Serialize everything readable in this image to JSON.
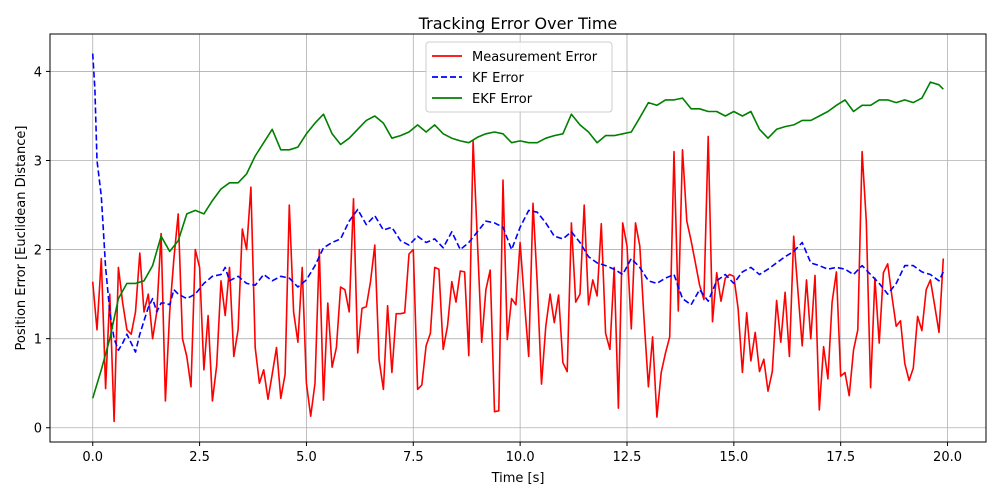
{
  "chart_data": {
    "type": "line",
    "title": "Tracking Error Over Time",
    "xlabel": "Time [s]",
    "ylabel": "Position Error [Euclidean Distance]",
    "xlim": [
      -1.0,
      20.9
    ],
    "ylim": [
      -0.16,
      4.42
    ],
    "grid": true,
    "legend_position": "top-center",
    "x_ticks": [
      0,
      2.5,
      5,
      7.5,
      10,
      12.5,
      15,
      17.5,
      20
    ],
    "x_tick_labels": [
      "0.0",
      "2.5",
      "5.0",
      "7.5",
      "10.0",
      "12.5",
      "15.0",
      "17.5",
      "20.0"
    ],
    "y_ticks": [
      0,
      1,
      2,
      3,
      4
    ],
    "y_tick_labels": [
      "0",
      "1",
      "2",
      "3",
      "4"
    ],
    "series": [
      {
        "name": "Measurement Error",
        "color": "#ff0000",
        "dash": "solid",
        "x": [
          0.0,
          0.1,
          0.2,
          0.3,
          0.4,
          0.5,
          0.6,
          0.7,
          0.8,
          0.9,
          1.0,
          1.1,
          1.2,
          1.3,
          1.4,
          1.5,
          1.6,
          1.7,
          1.8,
          1.9,
          2.0,
          2.1,
          2.2,
          2.3,
          2.4,
          2.5,
          2.6,
          2.7,
          2.8,
          2.9,
          3.0,
          3.1,
          3.2,
          3.3,
          3.4,
          3.5,
          3.6,
          3.7,
          3.8,
          3.9,
          4.0,
          4.1,
          4.2,
          4.3,
          4.4,
          4.5,
          4.6,
          4.7,
          4.8,
          4.9,
          5.0,
          5.1,
          5.2,
          5.3,
          5.4,
          5.5,
          5.6,
          5.7,
          5.8,
          5.9,
          6.0,
          6.1,
          6.2,
          6.3,
          6.4,
          6.5,
          6.6,
          6.7,
          6.8,
          6.9,
          7.0,
          7.1,
          7.2,
          7.3,
          7.4,
          7.5,
          7.6,
          7.7,
          7.8,
          7.9,
          8.0,
          8.1,
          8.2,
          8.3,
          8.4,
          8.5,
          8.6,
          8.7,
          8.8,
          8.9,
          9.0,
          9.1,
          9.2,
          9.3,
          9.4,
          9.5,
          9.6,
          9.7,
          9.8,
          9.9,
          10.0,
          10.1,
          10.2,
          10.3,
          10.4,
          10.5,
          10.6,
          10.7,
          10.8,
          10.9,
          11.0,
          11.1,
          11.2,
          11.3,
          11.4,
          11.5,
          11.6,
          11.7,
          11.8,
          11.9,
          12.0,
          12.1,
          12.2,
          12.3,
          12.4,
          12.5,
          12.6,
          12.7,
          12.8,
          12.9,
          13.0,
          13.1,
          13.2,
          13.3,
          13.4,
          13.5,
          13.6,
          13.7,
          13.8,
          13.9,
          14.0,
          14.1,
          14.2,
          14.3,
          14.4,
          14.5,
          14.6,
          14.7,
          14.8,
          14.9,
          15.0,
          15.1,
          15.2,
          15.3,
          15.4,
          15.5,
          15.6,
          15.7,
          15.8,
          15.9,
          16.0,
          16.1,
          16.2,
          16.3,
          16.4,
          16.5,
          16.6,
          16.7,
          16.8,
          16.9,
          17.0,
          17.1,
          17.2,
          17.3,
          17.4,
          17.5,
          17.6,
          17.7,
          17.8,
          17.9,
          18.0,
          18.1,
          18.2,
          18.3,
          18.4,
          18.5,
          18.6,
          18.7,
          18.8,
          18.9,
          19.0,
          19.1,
          19.2,
          19.3,
          19.4,
          19.5,
          19.6,
          19.7,
          19.8,
          19.9
        ],
        "y": [
          1.64,
          1.1,
          1.9,
          0.44,
          1.5,
          0.07,
          1.8,
          1.4,
          1.1,
          1.05,
          1.3,
          1.96,
          1.3,
          1.5,
          1.0,
          1.3,
          2.18,
          0.3,
          1.3,
          1.9,
          2.4,
          1.0,
          0.8,
          0.46,
          2.0,
          1.8,
          0.65,
          1.26,
          0.3,
          0.7,
          1.65,
          1.26,
          1.8,
          0.8,
          1.1,
          2.23,
          2.0,
          2.7,
          0.9,
          0.5,
          0.65,
          0.32,
          0.6,
          0.9,
          0.33,
          0.6,
          2.5,
          1.3,
          0.96,
          1.8,
          0.5,
          0.13,
          0.5,
          2.0,
          0.31,
          1.4,
          0.68,
          0.9,
          1.58,
          1.55,
          1.3,
          2.57,
          0.84,
          1.34,
          1.36,
          1.64,
          2.05,
          0.76,
          0.43,
          1.37,
          0.62,
          1.28,
          1.28,
          1.29,
          1.95,
          2.0,
          0.43,
          0.48,
          0.92,
          1.06,
          1.8,
          1.78,
          0.88,
          1.14,
          1.64,
          1.41,
          1.76,
          1.75,
          0.81,
          3.22,
          2.1,
          0.96,
          1.55,
          1.77,
          0.18,
          0.19,
          2.78,
          0.99,
          1.45,
          1.38,
          2.08,
          1.42,
          0.8,
          2.52,
          1.63,
          0.49,
          1.14,
          1.5,
          1.18,
          1.49,
          0.73,
          0.63,
          2.3,
          1.41,
          1.5,
          2.5,
          1.38,
          1.66,
          1.48,
          2.29,
          1.06,
          0.88,
          1.8,
          0.22,
          2.3,
          2.04,
          1.11,
          2.3,
          2.04,
          1.21,
          0.46,
          1.02,
          0.12,
          0.62,
          0.84,
          1.02,
          3.1,
          1.31,
          3.12,
          2.32,
          2.1,
          1.85,
          1.6,
          1.44,
          3.27,
          1.19,
          1.74,
          1.42,
          1.68,
          1.72,
          1.7,
          1.34,
          0.62,
          1.29,
          0.75,
          1.07,
          0.63,
          0.77,
          0.41,
          0.63,
          1.43,
          0.96,
          1.52,
          0.8,
          2.15,
          1.54,
          0.92,
          1.66,
          1.0,
          1.71,
          0.2,
          0.91,
          0.55,
          1.41,
          1.75,
          0.58,
          0.62,
          0.36,
          0.87,
          1.1,
          3.1,
          2.32,
          0.45,
          1.68,
          0.95,
          1.74,
          1.84,
          1.47,
          1.14,
          1.2,
          0.72,
          0.53,
          0.67,
          1.25,
          1.09,
          1.55,
          1.66,
          1.37,
          1.07,
          1.9
        ]
      },
      {
        "name": "KF Error",
        "color": "#0000ff",
        "dash": "dashed",
        "x": [
          0.0,
          0.05,
          0.1,
          0.2,
          0.3,
          0.4,
          0.5,
          0.6,
          0.7,
          0.8,
          0.9,
          1.0,
          1.1,
          1.2,
          1.3,
          1.4,
          1.5,
          1.6,
          1.7,
          1.8,
          1.9,
          2.0,
          2.2,
          2.4,
          2.6,
          2.8,
          3.0,
          3.1,
          3.2,
          3.4,
          3.6,
          3.8,
          4.0,
          4.2,
          4.4,
          4.6,
          4.8,
          5.0,
          5.2,
          5.4,
          5.6,
          5.8,
          6.0,
          6.2,
          6.4,
          6.6,
          6.8,
          7.0,
          7.2,
          7.4,
          7.6,
          7.8,
          8.0,
          8.2,
          8.4,
          8.6,
          8.8,
          9.0,
          9.2,
          9.4,
          9.6,
          9.8,
          10.0,
          10.2,
          10.4,
          10.6,
          10.8,
          11.0,
          11.2,
          11.4,
          11.6,
          11.8,
          12.0,
          12.2,
          12.4,
          12.6,
          12.8,
          13.0,
          13.2,
          13.4,
          13.6,
          13.8,
          14.0,
          14.2,
          14.4,
          14.6,
          14.8,
          15.0,
          15.2,
          15.4,
          15.6,
          15.8,
          16.0,
          16.2,
          16.4,
          16.6,
          16.8,
          17.0,
          17.2,
          17.4,
          17.6,
          17.8,
          18.0,
          18.2,
          18.4,
          18.6,
          18.8,
          19.0,
          19.2,
          19.4,
          19.6,
          19.8,
          19.9
        ],
        "y": [
          4.2,
          3.8,
          3.0,
          2.6,
          1.8,
          1.3,
          1.0,
          0.87,
          0.95,
          1.05,
          0.95,
          0.85,
          1.05,
          1.2,
          1.35,
          1.45,
          1.3,
          1.4,
          1.4,
          1.38,
          1.55,
          1.5,
          1.45,
          1.5,
          1.62,
          1.7,
          1.72,
          1.8,
          1.65,
          1.7,
          1.62,
          1.6,
          1.72,
          1.65,
          1.7,
          1.68,
          1.58,
          1.66,
          1.82,
          2.02,
          2.08,
          2.12,
          2.32,
          2.45,
          2.28,
          2.38,
          2.22,
          2.25,
          2.1,
          2.05,
          2.15,
          2.08,
          2.12,
          2.02,
          2.2,
          2.0,
          2.08,
          2.2,
          2.32,
          2.3,
          2.25,
          2.0,
          2.25,
          2.44,
          2.42,
          2.3,
          2.15,
          2.12,
          2.2,
          2.08,
          1.92,
          1.85,
          1.82,
          1.78,
          1.72,
          1.9,
          1.8,
          1.65,
          1.62,
          1.68,
          1.72,
          1.45,
          1.38,
          1.55,
          1.42,
          1.65,
          1.72,
          1.62,
          1.75,
          1.8,
          1.72,
          1.78,
          1.85,
          1.92,
          1.98,
          2.08,
          1.85,
          1.82,
          1.78,
          1.8,
          1.78,
          1.72,
          1.82,
          1.72,
          1.62,
          1.5,
          1.62,
          1.82,
          1.82,
          1.75,
          1.72,
          1.65,
          1.75
        ]
      },
      {
        "name": "EKF Error",
        "color": "#008000",
        "dash": "solid",
        "x": [
          0.0,
          0.2,
          0.4,
          0.6,
          0.8,
          1.0,
          1.2,
          1.4,
          1.6,
          1.8,
          2.0,
          2.2,
          2.4,
          2.6,
          2.8,
          3.0,
          3.2,
          3.4,
          3.6,
          3.8,
          4.0,
          4.2,
          4.4,
          4.6,
          4.8,
          5.0,
          5.2,
          5.4,
          5.6,
          5.8,
          6.0,
          6.2,
          6.4,
          6.6,
          6.8,
          7.0,
          7.2,
          7.4,
          7.6,
          7.8,
          8.0,
          8.2,
          8.4,
          8.6,
          8.8,
          9.0,
          9.2,
          9.4,
          9.6,
          9.8,
          10.0,
          10.2,
          10.4,
          10.6,
          10.8,
          11.0,
          11.2,
          11.4,
          11.6,
          11.8,
          12.0,
          12.2,
          12.4,
          12.6,
          12.8,
          13.0,
          13.2,
          13.4,
          13.6,
          13.8,
          14.0,
          14.2,
          14.4,
          14.6,
          14.8,
          15.0,
          15.2,
          15.4,
          15.6,
          15.8,
          16.0,
          16.2,
          16.4,
          16.6,
          16.8,
          17.0,
          17.2,
          17.4,
          17.6,
          17.8,
          18.0,
          18.2,
          18.4,
          18.6,
          18.8,
          19.0,
          19.2,
          19.4,
          19.6,
          19.8,
          19.9
        ],
        "y": [
          0.33,
          0.65,
          1.0,
          1.45,
          1.62,
          1.62,
          1.65,
          1.82,
          2.15,
          1.98,
          2.1,
          2.4,
          2.44,
          2.4,
          2.55,
          2.68,
          2.75,
          2.75,
          2.85,
          3.05,
          3.2,
          3.35,
          3.12,
          3.12,
          3.15,
          3.3,
          3.42,
          3.52,
          3.3,
          3.18,
          3.25,
          3.35,
          3.45,
          3.5,
          3.42,
          3.25,
          3.28,
          3.32,
          3.4,
          3.32,
          3.4,
          3.3,
          3.25,
          3.22,
          3.2,
          3.26,
          3.3,
          3.32,
          3.3,
          3.2,
          3.22,
          3.2,
          3.2,
          3.25,
          3.28,
          3.3,
          3.52,
          3.4,
          3.32,
          3.2,
          3.28,
          3.28,
          3.3,
          3.32,
          3.48,
          3.65,
          3.62,
          3.68,
          3.68,
          3.7,
          3.58,
          3.58,
          3.55,
          3.55,
          3.5,
          3.55,
          3.5,
          3.55,
          3.35,
          3.25,
          3.35,
          3.38,
          3.4,
          3.45,
          3.45,
          3.5,
          3.55,
          3.62,
          3.68,
          3.55,
          3.62,
          3.62,
          3.68,
          3.68,
          3.65,
          3.68,
          3.65,
          3.7,
          3.88,
          3.85,
          3.8
        ]
      }
    ]
  }
}
